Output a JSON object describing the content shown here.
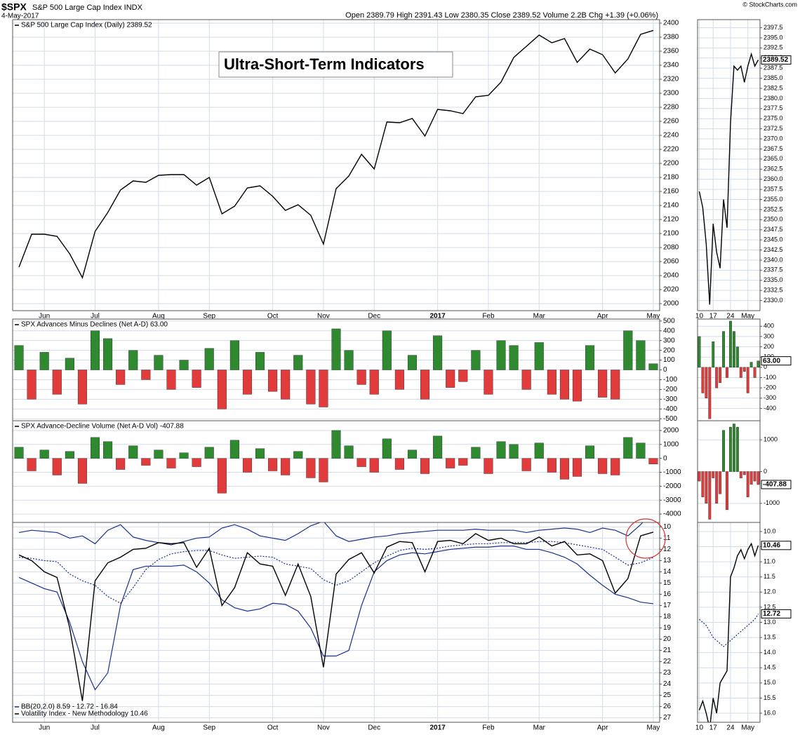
{
  "header": {
    "symbol": "$SPX",
    "name": "S&P 500 Large Cap Index INDX",
    "date": "4-May-2017",
    "quote": "Open 2389.79 High 2391.43 Low 2380.35 Close 2389.52 Volume 2.2B Chg +1.39 (+0.06%)",
    "credit": "© StockCharts.com",
    "annotation": "Ultra-Short-Term Indicators"
  },
  "chart_data": [
    {
      "type": "line",
      "grid": true,
      "categories": [
        null,
        null,
        "Jun",
        null,
        null,
        null,
        "Jul",
        null,
        null,
        null,
        null,
        "Aug",
        null,
        null,
        null,
        "Sep",
        null,
        null,
        null,
        null,
        "Oct",
        null,
        null,
        null,
        "Nov",
        null,
        null,
        null,
        "Dec",
        null,
        null,
        null,
        null,
        "2017",
        null,
        null,
        null,
        "Feb",
        null,
        null,
        null,
        "Mar",
        null,
        null,
        null,
        null,
        "Apr",
        null,
        null,
        null,
        "May"
      ],
      "series": [
        {
          "name": "S&P 500 Large Cap Index (Daily) 2389.52",
          "color": "#000000",
          "values": [
            2052,
            2099,
            2099,
            2096,
            2071,
            2037,
            2103,
            2130,
            2162,
            2175,
            2173,
            2183,
            2184,
            2184,
            2169,
            2180,
            2128,
            2139,
            2165,
            2168,
            2153,
            2133,
            2141,
            2126,
            2085,
            2164,
            2182,
            2213,
            2192,
            2259,
            2258,
            2264,
            2239,
            2277,
            2275,
            2271,
            2295,
            2297,
            2316,
            2351,
            2367,
            2383,
            2372,
            2378,
            2344,
            2363,
            2355,
            2329,
            2349,
            2384,
            2389.52
          ]
        }
      ],
      "ylim": [
        1990,
        2405
      ],
      "yticks": [
        2000,
        2020,
        2040,
        2060,
        2080,
        2100,
        2120,
        2140,
        2160,
        2180,
        2200,
        2220,
        2240,
        2260,
        2280,
        2300,
        2320,
        2340,
        2360,
        2380,
        2400
      ]
    },
    {
      "type": "line",
      "grid": true,
      "categories": [
        "10",
        null,
        null,
        null,
        "17",
        null,
        null,
        null,
        null,
        "24",
        null,
        null,
        null,
        null,
        "May",
        null,
        null,
        null
      ],
      "series": [
        {
          "color": "#000000",
          "values": [
            2357,
            2353,
            2344,
            2329,
            2349,
            2342,
            2338,
            2355,
            2348,
            2374,
            2388,
            2387,
            2388,
            2384,
            2388,
            2391,
            2388,
            2389.52
          ]
        }
      ],
      "ylim": [
        2327.5,
        2399.5
      ],
      "yticks": [
        {
          "value": 2330,
          "label": "2330.0"
        },
        2332.5,
        {
          "value": 2335,
          "label": "2335.0"
        },
        2337.5,
        {
          "value": 2340,
          "label": "2340.0"
        },
        2342.5,
        {
          "value": 2345,
          "label": "2345.0"
        },
        2347.5,
        {
          "value": 2350,
          "label": "2350.0"
        },
        2352.5,
        {
          "value": 2355,
          "label": "2355.0"
        },
        2357.5,
        {
          "value": 2360,
          "label": "2360.0"
        },
        2362.5,
        {
          "value": 2365,
          "label": "2365.0"
        },
        2367.5,
        {
          "value": 2370,
          "label": "2370.0"
        },
        2372.5,
        {
          "value": 2375,
          "label": "2375.0"
        },
        2377.5,
        {
          "value": 2380,
          "label": "2380.0"
        },
        2382.5,
        {
          "value": 2385,
          "label": "2385.0"
        },
        2387.5,
        {
          "value": 2390,
          "label": "2390.0"
        },
        2392.5,
        {
          "value": 2395,
          "label": "2395.0"
        },
        2397.5
      ],
      "markers": [
        {
          "value": 2389.52,
          "label": "2389.52"
        }
      ]
    },
    {
      "type": "bar",
      "grid": true,
      "series": [
        {
          "name": "SPX Advances Minus Declines (Net A-D) 63.00",
          "color": "#2f8a2f",
          "negative_color": "#e23b3b",
          "values": [
            250,
            -300,
            180,
            -250,
            120,
            -350,
            400,
            320,
            -150,
            200,
            -100,
            150,
            -200,
            100,
            -180,
            220,
            -400,
            300,
            -250,
            180,
            -220,
            -300,
            150,
            -350,
            -380,
            420,
            200,
            -150,
            -250,
            400,
            -200,
            150,
            -300,
            350,
            -180,
            -120,
            200,
            -250,
            300,
            250,
            -200,
            280,
            -250,
            -300,
            -320,
            250,
            -280,
            -300,
            400,
            300,
            63
          ]
        }
      ],
      "ylim": [
        -520,
        520
      ],
      "yticks": [
        -500,
        -400,
        -300,
        -200,
        -100,
        0,
        100,
        200,
        300,
        400,
        500
      ]
    },
    {
      "type": "bar",
      "grid": true,
      "series": [
        {
          "color": "#2f8a2f",
          "negative_color": "#e23b3b",
          "values": [
            300,
            -250,
            -300,
            -500,
            250,
            -200,
            -150,
            350,
            -100,
            450,
            350,
            200,
            -100,
            -40,
            -250,
            50,
            -100,
            63
          ]
        }
      ],
      "ylim": [
        -520,
        470
      ],
      "yticks": [
        -400,
        -300,
        -200,
        -100,
        0,
        100,
        200,
        300,
        400
      ],
      "markers": [
        {
          "value": 63,
          "label": "63.00"
        }
      ]
    },
    {
      "type": "bar",
      "grid": true,
      "series": [
        {
          "name": "SPX Advance-Decline Volume (Net A-D Vol) -407.88",
          "color": "#2f8a2f",
          "negative_color": "#e23b3b",
          "values": [
            800,
            -900,
            600,
            -1200,
            500,
            -1800,
            1500,
            1200,
            -800,
            900,
            -500,
            600,
            -700,
            400,
            -600,
            800,
            -2500,
            1300,
            -1000,
            700,
            -900,
            -1200,
            500,
            -1400,
            -1700,
            2000,
            900,
            -600,
            -1000,
            1400,
            -800,
            600,
            -1100,
            1600,
            -700,
            -500,
            800,
            -1100,
            1200,
            1000,
            -900,
            1100,
            -1000,
            -1500,
            -1300,
            900,
            -1100,
            -1200,
            1500,
            1100,
            -407.88
          ]
        }
      ],
      "ylim": [
        -4600,
        2700
      ],
      "yticks": [
        -4000,
        -3000,
        -2000,
        -1000,
        0,
        1000,
        2000
      ]
    },
    {
      "type": "bar",
      "grid": true,
      "series": [
        {
          "color": "#2f8a2f",
          "negative_color": "#e23b3b",
          "values": [
            -300,
            -800,
            -1000,
            -1500,
            -200,
            -1000,
            -700,
            1300,
            -1200,
            1400,
            1500,
            1400,
            -200,
            -100,
            -800,
            -400,
            -300,
            -407.88
          ]
        }
      ],
      "ylim": [
        -1600,
        1600
      ],
      "yticks": [
        -1000,
        0,
        1000
      ],
      "markers": [
        {
          "value": -407.88,
          "label": "-407.88"
        }
      ]
    },
    {
      "type": "line",
      "grid": true,
      "reversed": true,
      "categories": [
        null,
        null,
        "Jun",
        null,
        null,
        null,
        "Jul",
        null,
        null,
        null,
        null,
        "Aug",
        null,
        null,
        null,
        "Sep",
        null,
        null,
        null,
        null,
        "Oct",
        null,
        null,
        null,
        "Nov",
        null,
        null,
        null,
        "Dec",
        null,
        null,
        null,
        null,
        "2017",
        null,
        null,
        null,
        "Feb",
        null,
        null,
        null,
        "Mar",
        null,
        null,
        null,
        null,
        "Apr",
        null,
        null,
        null,
        "May"
      ],
      "series": [
        {
          "name": "BB(20,2.0) 8.59 - 12.72 - 16.84",
          "color": "#1a2f8a",
          "values": [
            10.5,
            10.3,
            10.4,
            10.5,
            11,
            10.8,
            11.5,
            10.3,
            9.8,
            10.9,
            11.2,
            11.4,
            11.6,
            11.3,
            11,
            10.9,
            10.1,
            9.8,
            10.2,
            10.8,
            11,
            11.2,
            10.6,
            9.9,
            9.5,
            10.8,
            11.3,
            11.1,
            10.9,
            10.8,
            10.6,
            10.5,
            10.4,
            10.3,
            10.3,
            10.3,
            10.2,
            10.3,
            10.3,
            10.3,
            10.5,
            10.3,
            10.2,
            10.1,
            10.2,
            10.5,
            10.1,
            10.3,
            10.8,
            9.8,
            8.59
          ]
        },
        {
          "color": "#1a2f8a",
          "dashed": true,
          "values": [
            12.7,
            12.8,
            13,
            13.1,
            14.2,
            14.8,
            15.2,
            16.2,
            16.8,
            15.4,
            13.8,
            12.9,
            12.4,
            12.2,
            12.1,
            12.1,
            12.5,
            12.8,
            12.7,
            12.6,
            12.7,
            13.3,
            13.5,
            13.7,
            14.7,
            15.2,
            14.8,
            14,
            13.2,
            12.6,
            12.1,
            11.9,
            12,
            11.9,
            11.7,
            11.6,
            11.5,
            11.5,
            11.4,
            11.4,
            11.4,
            11.3,
            11.3,
            11.4,
            11.6,
            11.8,
            12,
            12.7,
            13.4,
            13.2,
            12.72
          ]
        },
        {
          "color": "#1a2f8a",
          "values": [
            14.5,
            15,
            15.5,
            15.8,
            18.5,
            22,
            24.5,
            23,
            17,
            13.8,
            13.5,
            13.5,
            13.5,
            13.4,
            14,
            15,
            16.5,
            17.2,
            17.5,
            17.3,
            16.8,
            16.9,
            17.5,
            19,
            21.5,
            21.5,
            21,
            17,
            14,
            13,
            12.5,
            12.3,
            12.4,
            12.2,
            12,
            11.9,
            11.8,
            11.8,
            11.7,
            11.7,
            12,
            12,
            12.3,
            12.7,
            13.3,
            14.3,
            15.2,
            16,
            16.3,
            16.7,
            16.84
          ]
        },
        {
          "name": "Volatility Index - New Methodology 10.46",
          "color": "#000000",
          "values": [
            12.5,
            13,
            14,
            14.5,
            19,
            25.5,
            14.8,
            13.2,
            12.7,
            12,
            11.9,
            11.4,
            11.5,
            11.4,
            13.6,
            11.9,
            17,
            15.4,
            12.3,
            13.3,
            13.5,
            16.1,
            13.3,
            16.2,
            22.5,
            14.2,
            12.9,
            12.3,
            14.1,
            11.8,
            11.3,
            11.4,
            14,
            11.3,
            11.2,
            11.5,
            10.6,
            11.2,
            11,
            11.5,
            11.5,
            10.9,
            11.7,
            11.3,
            12.5,
            12.4,
            13,
            15.9,
            14.6,
            10.8,
            10.46
          ]
        }
      ],
      "ylim": [
        9.6,
        27.4
      ],
      "yticks": [
        10,
        11,
        12,
        13,
        14,
        15,
        16,
        17,
        18,
        19,
        20,
        21,
        22,
        23,
        24,
        25,
        26,
        27
      ]
    },
    {
      "type": "line",
      "grid": true,
      "reversed": true,
      "categories": [
        "10",
        null,
        null,
        null,
        "17",
        null,
        null,
        null,
        null,
        "24",
        null,
        null,
        null,
        null,
        "May",
        null,
        null,
        null
      ],
      "series": [
        {
          "color": "#1a2f8a",
          "dashed": true,
          "values": [
            12.9,
            13,
            13.1,
            13.3,
            13.5,
            13.6,
            13.7,
            13.8,
            13.7,
            13.6,
            13.5,
            13.4,
            13.3,
            13.2,
            13.1,
            13,
            12.9,
            12.72
          ]
        },
        {
          "color": "#000000",
          "values": [
            15.9,
            15.6,
            16,
            16.5,
            15.5,
            16,
            15,
            14.8,
            14.6,
            11.5,
            11.2,
            10.8,
            10.6,
            10.9,
            10.6,
            10.4,
            10.8,
            10.46
          ]
        }
      ],
      "ylim": [
        9.7,
        16.3
      ],
      "yticks": [
        {
          "value": 10,
          "label": "10.0"
        },
        10.5,
        {
          "value": 11,
          "label": "11.0"
        },
        11.5,
        {
          "value": 12,
          "label": "12.0"
        },
        12.5,
        {
          "value": 13,
          "label": "13.0"
        },
        13.5,
        {
          "value": 14,
          "label": "14.0"
        },
        14.5,
        {
          "value": 15,
          "label": "15.0"
        },
        15.5,
        {
          "value": 16,
          "label": "16.0"
        }
      ],
      "markers": [
        {
          "value": 10.46,
          "label": "10.46"
        },
        {
          "value": 12.72,
          "label": "12.72"
        }
      ]
    }
  ]
}
